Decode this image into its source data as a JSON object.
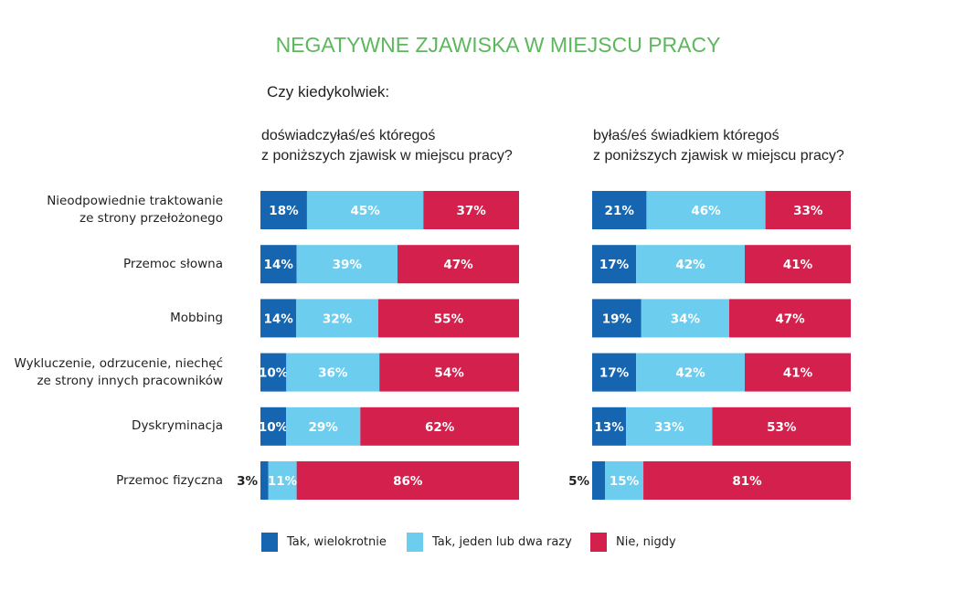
{
  "chart_data": {
    "type": "bar",
    "stacked": true,
    "orientation": "horizontal",
    "title": "NEGATYWNE ZJAWISKA W MIEJSCU PRACY",
    "question": "Czy kiedykolwiek:",
    "categories": [
      [
        "Nieodpowiednie traktowanie",
        "ze strony przełożonego"
      ],
      [
        "Przemoc słowna"
      ],
      [
        "Mobbing"
      ],
      [
        "Wykluczenie, odrzucenie, niechęć",
        "ze strony innych pracowników"
      ],
      [
        "Dyskryminacja"
      ],
      [
        "Przemoc fizyczna"
      ]
    ],
    "legend": [
      {
        "label": "Tak, wielokrotnie",
        "color": "#1565b0"
      },
      {
        "label": "Tak, jeden lub dwa razy",
        "color": "#6dcdee"
      },
      {
        "label": "Nie, nigdy",
        "color": "#d4204c"
      }
    ],
    "panels": [
      {
        "subtitle": [
          "doświadczyłaś/eś któregoś",
          "z poniższych zjawisk w miejscu pracy?"
        ],
        "values": [
          [
            18,
            45,
            37
          ],
          [
            14,
            39,
            47
          ],
          [
            14,
            32,
            55
          ],
          [
            10,
            36,
            54
          ],
          [
            10,
            29,
            62
          ],
          [
            3,
            11,
            86
          ]
        ]
      },
      {
        "subtitle": [
          "byłaś/eś świadkiem któregoś",
          "z poniższych zjawisk w miejscu pracy?"
        ],
        "values": [
          [
            21,
            46,
            33
          ],
          [
            17,
            42,
            41
          ],
          [
            19,
            34,
            47
          ],
          [
            17,
            42,
            41
          ],
          [
            13,
            33,
            53
          ],
          [
            5,
            15,
            81
          ]
        ]
      }
    ],
    "value_suffix": "%"
  }
}
